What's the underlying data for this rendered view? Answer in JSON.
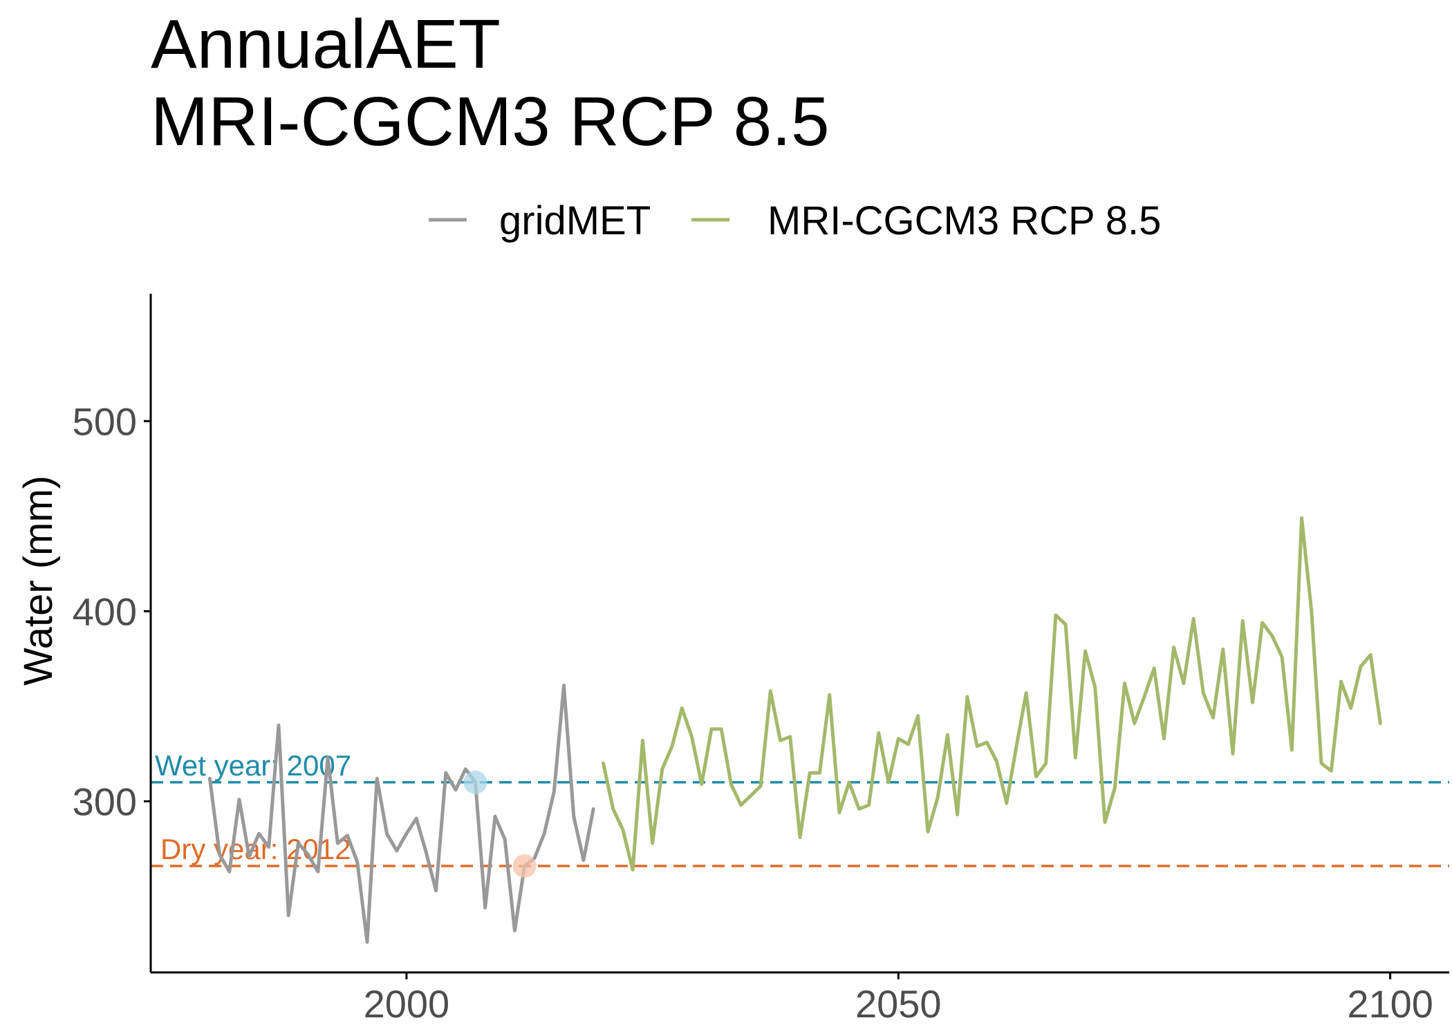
{
  "title_line1": "AnnualAET",
  "title_line2": "MRI-CGCM3 RCP 8.5",
  "colors": {
    "gridmet": "#999999",
    "future": "#a4b86a",
    "wet": "#1f8ba8",
    "dry": "#de6b2a",
    "wet_point": "#a9d6e6",
    "dry_point": "#f7c1a8",
    "axis": "#000000",
    "tick_text": "#4d4d4d"
  },
  "chart_data": {
    "type": "line",
    "title": "AnnualAET\nMRI-CGCM3 RCP 8.5",
    "xlabel": "",
    "ylabel": "Water (mm)",
    "xlim": [
      1974,
      2106
    ],
    "ylim": [
      210,
      567
    ],
    "x_ticks": [
      2000,
      2050,
      2100
    ],
    "y_ticks": [
      300,
      400,
      500
    ],
    "grid": false,
    "legend_position": "top",
    "legend": [
      "gridMET",
      "MRI-CGCM3 RCP 8.5"
    ],
    "series": [
      {
        "name": "gridMET",
        "color": "#999999",
        "x": [
          1980,
          1981,
          1982,
          1983,
          1984,
          1985,
          1986,
          1987,
          1988,
          1989,
          1990,
          1991,
          1992,
          1993,
          1994,
          1995,
          1996,
          1997,
          1998,
          1999,
          2000,
          2001,
          2002,
          2003,
          2004,
          2005,
          2006,
          2007,
          2008,
          2009,
          2010,
          2011,
          2012,
          2013,
          2014,
          2015,
          2016,
          2017,
          2018,
          2019
        ],
        "y": [
          312,
          272,
          263,
          301,
          271,
          283,
          276,
          340,
          240,
          278,
          272,
          263,
          323,
          278,
          282,
          268,
          226,
          312,
          283,
          274,
          283,
          291,
          273,
          253,
          315,
          306,
          317,
          310,
          244,
          292,
          280,
          232,
          266,
          270,
          283,
          305,
          361,
          292,
          269,
          296
        ]
      },
      {
        "name": "MRI-CGCM3 RCP 8.5",
        "color": "#a4b86a",
        "x": [
          2020,
          2021,
          2022,
          2023,
          2024,
          2025,
          2026,
          2027,
          2028,
          2029,
          2030,
          2031,
          2032,
          2033,
          2034,
          2035,
          2036,
          2037,
          2038,
          2039,
          2040,
          2041,
          2042,
          2043,
          2044,
          2045,
          2046,
          2047,
          2048,
          2049,
          2050,
          2051,
          2052,
          2053,
          2054,
          2055,
          2056,
          2057,
          2058,
          2059,
          2060,
          2061,
          2062,
          2063,
          2064,
          2065,
          2066,
          2067,
          2068,
          2069,
          2070,
          2071,
          2072,
          2073,
          2074,
          2075,
          2076,
          2077,
          2078,
          2079,
          2080,
          2081,
          2082,
          2083,
          2084,
          2085,
          2086,
          2087,
          2088,
          2089,
          2090,
          2091,
          2092,
          2093,
          2094,
          2095,
          2096,
          2097,
          2098,
          2099
        ],
        "y": [
          320,
          296,
          285,
          264,
          332,
          278,
          317,
          329,
          349,
          334,
          309,
          338,
          338,
          309,
          298,
          303,
          308,
          358,
          332,
          334,
          281,
          315,
          315,
          356,
          294,
          310,
          296,
          298,
          336,
          310,
          333,
          330,
          345,
          284,
          302,
          335,
          293,
          355,
          329,
          331,
          321,
          299,
          329,
          357,
          313,
          320,
          398,
          393,
          323,
          379,
          360,
          289,
          307,
          362,
          341,
          355,
          370,
          333,
          381,
          362,
          396,
          357,
          344,
          380,
          325,
          395,
          352,
          394,
          387,
          376,
          327,
          449,
          400,
          320,
          316,
          363,
          349,
          371,
          377,
          341
        ]
      }
    ],
    "reference_lines": [
      {
        "label": "Wet year: 2007",
        "year": 2007,
        "value": 310,
        "color": "#1f8ba8"
      },
      {
        "label": "Dry year: 2012",
        "year": 2012,
        "value": 266,
        "color": "#de6b2a"
      }
    ]
  }
}
